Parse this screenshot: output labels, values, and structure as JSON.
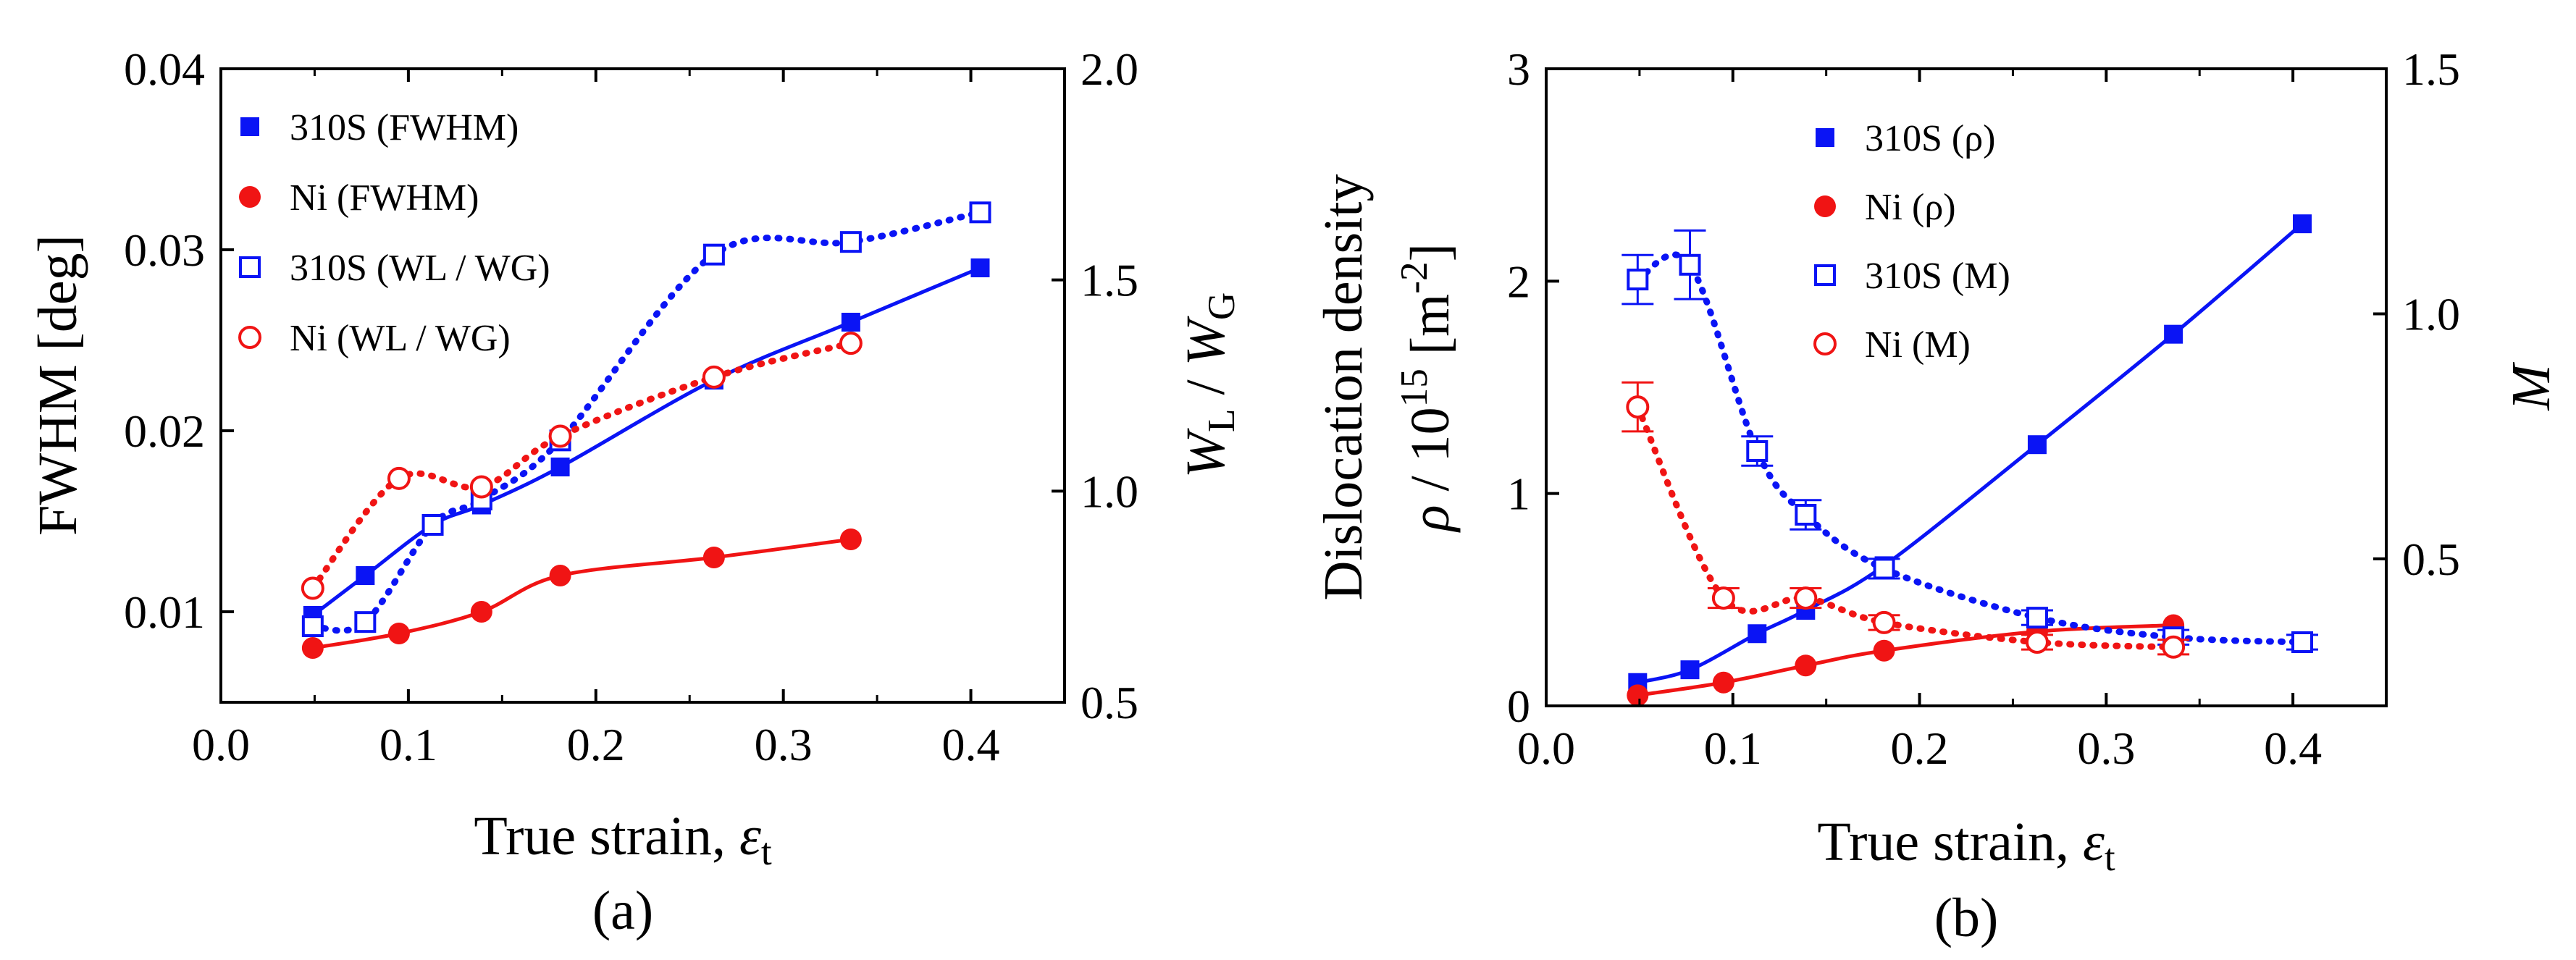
{
  "chart_data": [
    {
      "type": "scatter",
      "panel_label": "(a)",
      "xlabel": "True strain, εt",
      "ylabel": "FWHM [deg]",
      "y2label": "WL / WG",
      "xlim": [
        0.0,
        0.45
      ],
      "ylim": [
        0.005,
        0.04
      ],
      "y2lim": [
        0.5,
        2.0
      ],
      "xticks": [
        "0.0",
        "0.1",
        "0.2",
        "0.3",
        "0.4"
      ],
      "yticks": [
        "0.01",
        "0.02",
        "0.03",
        "0.04"
      ],
      "y2ticks": [
        "0.5",
        "1.0",
        "1.5",
        "2.0"
      ],
      "legend_position": "top-left",
      "series": [
        {
          "name": "310S (FWHM)",
          "axis": "left",
          "color": "#0a14f5",
          "marker": "filled-square",
          "line": "solid",
          "x": [
            0.049,
            0.077,
            0.113,
            0.139,
            0.181,
            0.263,
            0.336,
            0.405
          ],
          "y": [
            0.0098,
            0.012,
            0.0148,
            0.0159,
            0.018,
            0.0228,
            0.026,
            0.029
          ]
        },
        {
          "name": "Ni (FWHM)",
          "axis": "left",
          "color": "#f01414",
          "marker": "filled-circle",
          "line": "solid",
          "x": [
            0.049,
            0.095,
            0.139,
            0.181,
            0.263,
            0.336
          ],
          "y": [
            0.008,
            0.0088,
            0.01,
            0.012,
            0.013,
            0.014
          ]
        },
        {
          "name": "310S (WL / WG)",
          "axis": "right",
          "color": "#0a14f5",
          "marker": "open-square",
          "line": "dotted",
          "x": [
            0.049,
            0.077,
            0.113,
            0.139,
            0.181,
            0.263,
            0.336,
            0.405
          ],
          "y": [
            0.68,
            0.69,
            0.92,
            0.98,
            1.12,
            1.56,
            1.59,
            1.66
          ]
        },
        {
          "name": "Ni (WL / WG)",
          "axis": "right",
          "color": "#f01414",
          "marker": "open-circle",
          "line": "dotted",
          "x": [
            0.049,
            0.095,
            0.139,
            0.181,
            0.263,
            0.336
          ],
          "y": [
            0.77,
            1.03,
            1.01,
            1.13,
            1.27,
            1.35
          ]
        }
      ]
    },
    {
      "type": "scatter",
      "panel_label": "(b)",
      "xlabel": "True strain, εt",
      "ylabel": "Dislocation density ρ / 10^15 [m^-2]",
      "y2label": "M",
      "xlim": [
        0.0,
        0.45
      ],
      "ylim": [
        0,
        3
      ],
      "y2lim": [
        0.2,
        1.5
      ],
      "xticks": [
        "0.0",
        "0.1",
        "0.2",
        "0.3",
        "0.4"
      ],
      "yticks": [
        "0",
        "1",
        "2",
        "3"
      ],
      "y2ticks": [
        "0.5",
        "1.0",
        "1.5"
      ],
      "legend_position": "top-center",
      "series": [
        {
          "name": "310S (ρ)",
          "axis": "left",
          "color": "#0a14f5",
          "marker": "filled-square",
          "line": "solid",
          "x": [
            0.049,
            0.077,
            0.113,
            0.139,
            0.181,
            0.263,
            0.336,
            0.405
          ],
          "y": [
            0.11,
            0.17,
            0.34,
            0.45,
            0.66,
            1.23,
            1.75,
            2.27
          ]
        },
        {
          "name": "Ni (ρ)",
          "axis": "left",
          "color": "#f01414",
          "marker": "filled-circle",
          "line": "solid",
          "x": [
            0.049,
            0.095,
            0.139,
            0.181,
            0.263,
            0.336
          ],
          "y": [
            0.05,
            0.11,
            0.19,
            0.26,
            0.35,
            0.38
          ]
        },
        {
          "name": "310S (M)",
          "axis": "right",
          "color": "#0a14f5",
          "marker": "open-square",
          "line": "dotted",
          "x": [
            0.049,
            0.077,
            0.113,
            0.139,
            0.181,
            0.263,
            0.336,
            0.405
          ],
          "y": [
            1.07,
            1.1,
            0.72,
            0.59,
            0.48,
            0.38,
            0.34,
            0.33
          ],
          "err": [
            0.05,
            0.07,
            0.03,
            0.03,
            0.02,
            0.015,
            0.015,
            0.015
          ]
        },
        {
          "name": "Ni (M)",
          "axis": "right",
          "color": "#f01414",
          "marker": "open-circle",
          "line": "dotted",
          "x": [
            0.049,
            0.095,
            0.139,
            0.181,
            0.263,
            0.336
          ],
          "y": [
            0.81,
            0.42,
            0.42,
            0.37,
            0.33,
            0.32
          ],
          "err": [
            0.05,
            0.02,
            0.02,
            0.015,
            0.015,
            0.015
          ]
        }
      ]
    }
  ]
}
